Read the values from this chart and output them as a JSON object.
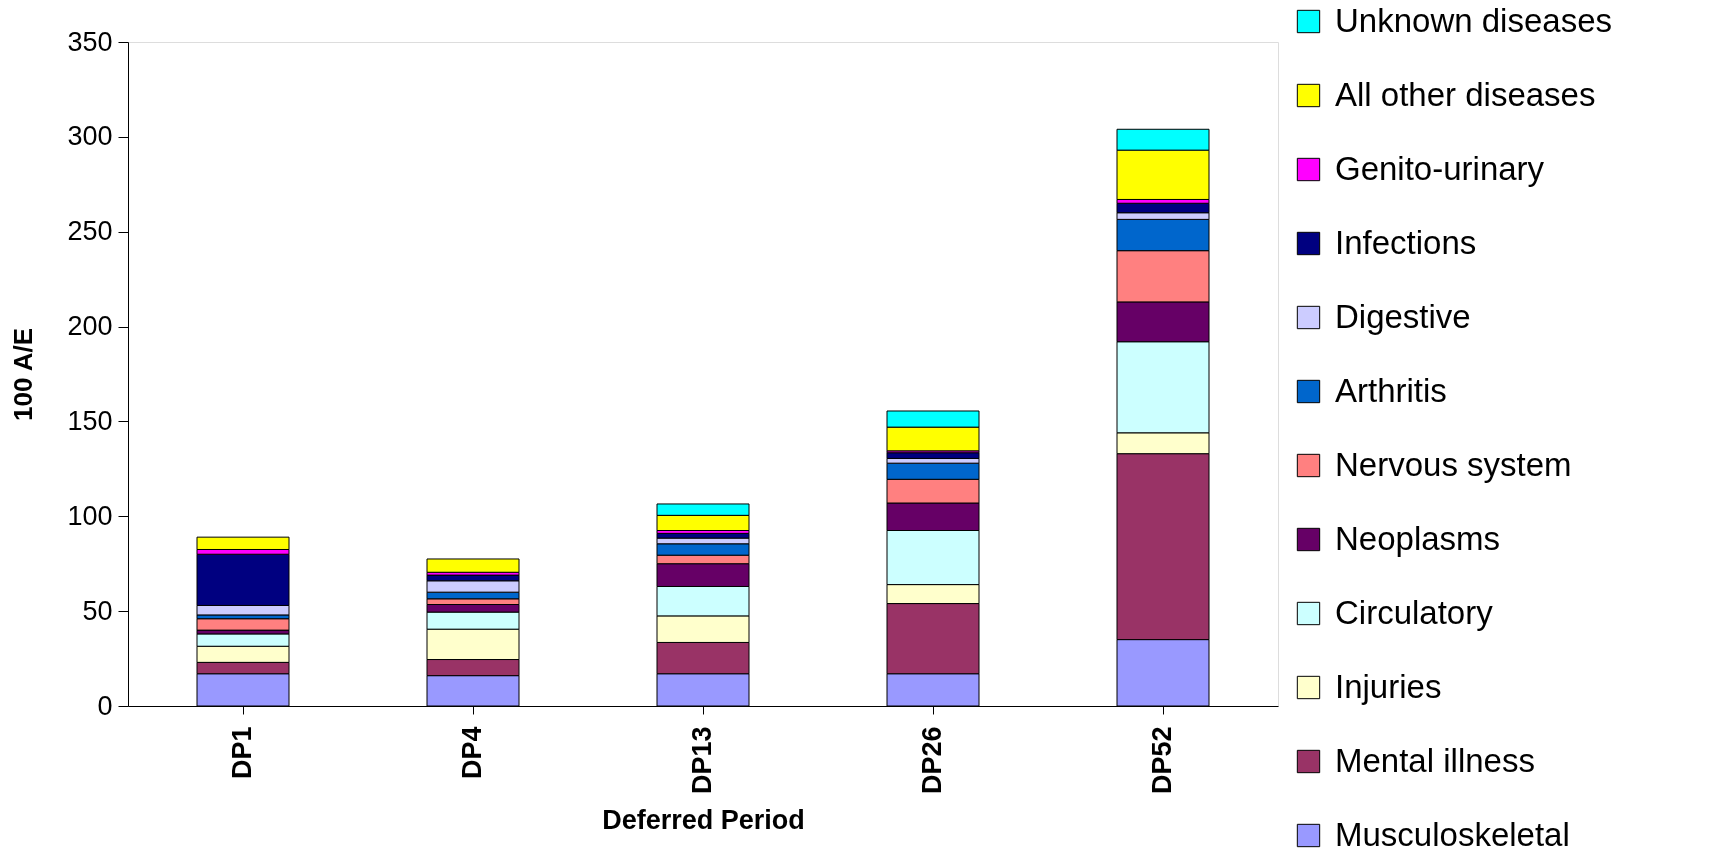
{
  "chart_data": {
    "type": "bar",
    "stacked": true,
    "xlabel": "Deferred Period",
    "ylabel": "100 A/E",
    "categories": [
      "DP1",
      "DP4",
      "DP13",
      "DP26",
      "DP52"
    ],
    "ylim": [
      0,
      350
    ],
    "yticks": [
      0,
      50,
      100,
      150,
      200,
      250,
      300,
      350
    ],
    "legend": "right",
    "series": [
      {
        "name": "Musculoskeletal",
        "color": "#9999ff",
        "values": [
          17,
          16,
          17,
          17,
          35
        ]
      },
      {
        "name": "Mental illness",
        "color": "#993366",
        "values": [
          6,
          8.5,
          16.5,
          37,
          98
        ]
      },
      {
        "name": "Injuries",
        "color": "#ffffcc",
        "values": [
          8.5,
          16,
          14,
          10,
          11
        ]
      },
      {
        "name": "Circulatory",
        "color": "#ccffff",
        "values": [
          6.5,
          9,
          15.5,
          28.5,
          48
        ]
      },
      {
        "name": "Neoplasms",
        "color": "#660066",
        "values": [
          2,
          4,
          12,
          14.5,
          21
        ]
      },
      {
        "name": "Nervous system",
        "color": "#ff8080",
        "values": [
          6,
          3,
          4.5,
          12.5,
          27
        ]
      },
      {
        "name": "Arthritis",
        "color": "#0066cc",
        "values": [
          2,
          3.5,
          6,
          8.5,
          16.5
        ]
      },
      {
        "name": "Digestive",
        "color": "#ccccff",
        "values": [
          5,
          6,
          3,
          2.5,
          3.5
        ]
      },
      {
        "name": "Infections",
        "color": "#000080",
        "values": [
          27,
          3,
          2.5,
          3,
          5
        ]
      },
      {
        "name": "Genito-urinary",
        "color": "#ff00ff",
        "values": [
          2.5,
          1.5,
          1.5,
          1,
          2
        ]
      },
      {
        "name": "All other diseases",
        "color": "#ffff00",
        "values": [
          6.5,
          7,
          8,
          12.5,
          26
        ]
      },
      {
        "name": "Unknown diseases",
        "color": "#00ffff",
        "values": [
          null,
          null,
          6,
          8.5,
          11
        ]
      }
    ]
  }
}
